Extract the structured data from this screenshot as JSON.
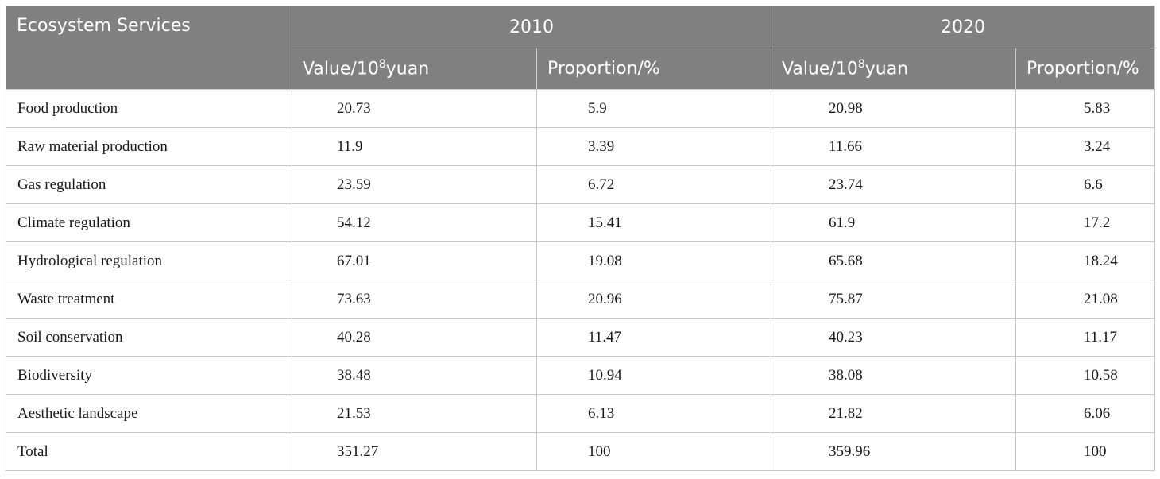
{
  "table": {
    "header": {
      "corner": "Ecosystem Services",
      "years": [
        "2010",
        "2020"
      ],
      "value_label_pre": "Value/10",
      "value_label_sup": "8",
      "value_label_post": "yuan",
      "proportion_label": "Proportion/%"
    },
    "rows": [
      {
        "service": "Food production",
        "v2010": "20.73",
        "p2010": "5.9",
        "v2020": "20.98",
        "p2020": "5.83"
      },
      {
        "service": "Raw material production",
        "v2010": "11.9",
        "p2010": "3.39",
        "v2020": "11.66",
        "p2020": "3.24"
      },
      {
        "service": "Gas regulation",
        "v2010": "23.59",
        "p2010": "6.72",
        "v2020": "23.74",
        "p2020": "6.6"
      },
      {
        "service": "Climate regulation",
        "v2010": "54.12",
        "p2010": "15.41",
        "v2020": "61.9",
        "p2020": "17.2"
      },
      {
        "service": "Hydrological regulation",
        "v2010": "67.01",
        "p2010": "19.08",
        "v2020": "65.68",
        "p2020": "18.24"
      },
      {
        "service": "Waste treatment",
        "v2010": "73.63",
        "p2010": "20.96",
        "v2020": "75.87",
        "p2020": "21.08"
      },
      {
        "service": "Soil conservation",
        "v2010": "40.28",
        "p2010": "11.47",
        "v2020": "40.23",
        "p2020": "11.17"
      },
      {
        "service": "Biodiversity",
        "v2010": "38.48",
        "p2010": "10.94",
        "v2020": "38.08",
        "p2020": "10.58"
      },
      {
        "service": "Aesthetic landscape",
        "v2010": "21.53",
        "p2010": "6.13",
        "v2020": "21.82",
        "p2020": "6.06"
      },
      {
        "service": "Total",
        "v2010": "351.27",
        "p2010": "100",
        "v2020": "359.96",
        "p2020": "100"
      }
    ]
  }
}
